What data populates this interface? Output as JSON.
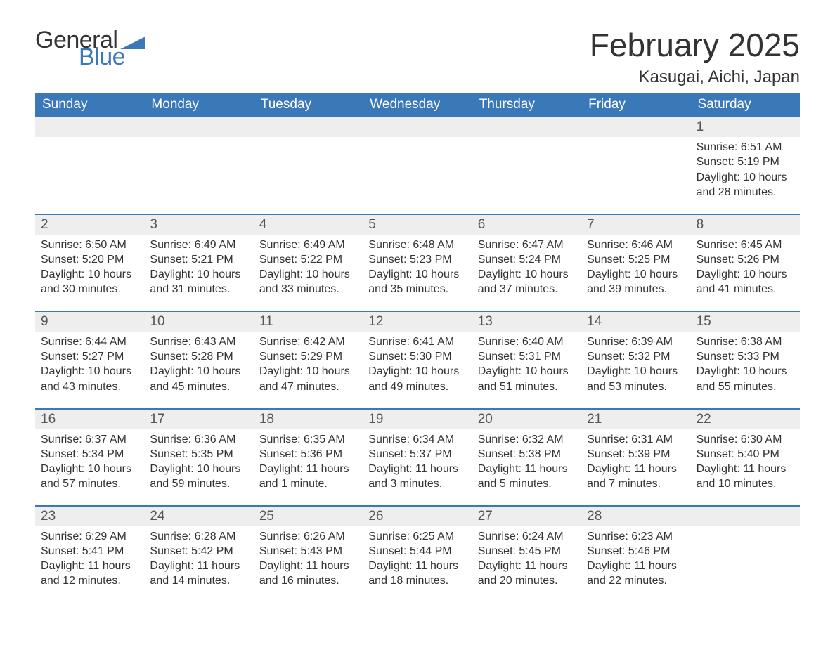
{
  "logo": {
    "text_general": "General",
    "text_blue": "Blue",
    "triangle_color": "#3a78b8"
  },
  "title": {
    "month": "February 2025",
    "location": "Kasugai, Aichi, Japan"
  },
  "colors": {
    "header_bg": "#3a78b8",
    "header_text": "#ffffff",
    "strip_bg": "#eeeeee",
    "text": "#333333",
    "rule": "#3a78b8"
  },
  "day_names": [
    "Sunday",
    "Monday",
    "Tuesday",
    "Wednesday",
    "Thursday",
    "Friday",
    "Saturday"
  ],
  "weeks": [
    {
      "nums": [
        "",
        "",
        "",
        "",
        "",
        "",
        "1"
      ],
      "cells": [
        null,
        null,
        null,
        null,
        null,
        null,
        {
          "sunrise": "Sunrise: 6:51 AM",
          "sunset": "Sunset: 5:19 PM",
          "day1": "Daylight: 10 hours",
          "day2": "and 28 minutes."
        }
      ]
    },
    {
      "nums": [
        "2",
        "3",
        "4",
        "5",
        "6",
        "7",
        "8"
      ],
      "cells": [
        {
          "sunrise": "Sunrise: 6:50 AM",
          "sunset": "Sunset: 5:20 PM",
          "day1": "Daylight: 10 hours",
          "day2": "and 30 minutes."
        },
        {
          "sunrise": "Sunrise: 6:49 AM",
          "sunset": "Sunset: 5:21 PM",
          "day1": "Daylight: 10 hours",
          "day2": "and 31 minutes."
        },
        {
          "sunrise": "Sunrise: 6:49 AM",
          "sunset": "Sunset: 5:22 PM",
          "day1": "Daylight: 10 hours",
          "day2": "and 33 minutes."
        },
        {
          "sunrise": "Sunrise: 6:48 AM",
          "sunset": "Sunset: 5:23 PM",
          "day1": "Daylight: 10 hours",
          "day2": "and 35 minutes."
        },
        {
          "sunrise": "Sunrise: 6:47 AM",
          "sunset": "Sunset: 5:24 PM",
          "day1": "Daylight: 10 hours",
          "day2": "and 37 minutes."
        },
        {
          "sunrise": "Sunrise: 6:46 AM",
          "sunset": "Sunset: 5:25 PM",
          "day1": "Daylight: 10 hours",
          "day2": "and 39 minutes."
        },
        {
          "sunrise": "Sunrise: 6:45 AM",
          "sunset": "Sunset: 5:26 PM",
          "day1": "Daylight: 10 hours",
          "day2": "and 41 minutes."
        }
      ]
    },
    {
      "nums": [
        "9",
        "10",
        "11",
        "12",
        "13",
        "14",
        "15"
      ],
      "cells": [
        {
          "sunrise": "Sunrise: 6:44 AM",
          "sunset": "Sunset: 5:27 PM",
          "day1": "Daylight: 10 hours",
          "day2": "and 43 minutes."
        },
        {
          "sunrise": "Sunrise: 6:43 AM",
          "sunset": "Sunset: 5:28 PM",
          "day1": "Daylight: 10 hours",
          "day2": "and 45 minutes."
        },
        {
          "sunrise": "Sunrise: 6:42 AM",
          "sunset": "Sunset: 5:29 PM",
          "day1": "Daylight: 10 hours",
          "day2": "and 47 minutes."
        },
        {
          "sunrise": "Sunrise: 6:41 AM",
          "sunset": "Sunset: 5:30 PM",
          "day1": "Daylight: 10 hours",
          "day2": "and 49 minutes."
        },
        {
          "sunrise": "Sunrise: 6:40 AM",
          "sunset": "Sunset: 5:31 PM",
          "day1": "Daylight: 10 hours",
          "day2": "and 51 minutes."
        },
        {
          "sunrise": "Sunrise: 6:39 AM",
          "sunset": "Sunset: 5:32 PM",
          "day1": "Daylight: 10 hours",
          "day2": "and 53 minutes."
        },
        {
          "sunrise": "Sunrise: 6:38 AM",
          "sunset": "Sunset: 5:33 PM",
          "day1": "Daylight: 10 hours",
          "day2": "and 55 minutes."
        }
      ]
    },
    {
      "nums": [
        "16",
        "17",
        "18",
        "19",
        "20",
        "21",
        "22"
      ],
      "cells": [
        {
          "sunrise": "Sunrise: 6:37 AM",
          "sunset": "Sunset: 5:34 PM",
          "day1": "Daylight: 10 hours",
          "day2": "and 57 minutes."
        },
        {
          "sunrise": "Sunrise: 6:36 AM",
          "sunset": "Sunset: 5:35 PM",
          "day1": "Daylight: 10 hours",
          "day2": "and 59 minutes."
        },
        {
          "sunrise": "Sunrise: 6:35 AM",
          "sunset": "Sunset: 5:36 PM",
          "day1": "Daylight: 11 hours",
          "day2": "and 1 minute."
        },
        {
          "sunrise": "Sunrise: 6:34 AM",
          "sunset": "Sunset: 5:37 PM",
          "day1": "Daylight: 11 hours",
          "day2": "and 3 minutes."
        },
        {
          "sunrise": "Sunrise: 6:32 AM",
          "sunset": "Sunset: 5:38 PM",
          "day1": "Daylight: 11 hours",
          "day2": "and 5 minutes."
        },
        {
          "sunrise": "Sunrise: 6:31 AM",
          "sunset": "Sunset: 5:39 PM",
          "day1": "Daylight: 11 hours",
          "day2": "and 7 minutes."
        },
        {
          "sunrise": "Sunrise: 6:30 AM",
          "sunset": "Sunset: 5:40 PM",
          "day1": "Daylight: 11 hours",
          "day2": "and 10 minutes."
        }
      ]
    },
    {
      "nums": [
        "23",
        "24",
        "25",
        "26",
        "27",
        "28",
        ""
      ],
      "cells": [
        {
          "sunrise": "Sunrise: 6:29 AM",
          "sunset": "Sunset: 5:41 PM",
          "day1": "Daylight: 11 hours",
          "day2": "and 12 minutes."
        },
        {
          "sunrise": "Sunrise: 6:28 AM",
          "sunset": "Sunset: 5:42 PM",
          "day1": "Daylight: 11 hours",
          "day2": "and 14 minutes."
        },
        {
          "sunrise": "Sunrise: 6:26 AM",
          "sunset": "Sunset: 5:43 PM",
          "day1": "Daylight: 11 hours",
          "day2": "and 16 minutes."
        },
        {
          "sunrise": "Sunrise: 6:25 AM",
          "sunset": "Sunset: 5:44 PM",
          "day1": "Daylight: 11 hours",
          "day2": "and 18 minutes."
        },
        {
          "sunrise": "Sunrise: 6:24 AM",
          "sunset": "Sunset: 5:45 PM",
          "day1": "Daylight: 11 hours",
          "day2": "and 20 minutes."
        },
        {
          "sunrise": "Sunrise: 6:23 AM",
          "sunset": "Sunset: 5:46 PM",
          "day1": "Daylight: 11 hours",
          "day2": "and 22 minutes."
        },
        null
      ]
    }
  ]
}
